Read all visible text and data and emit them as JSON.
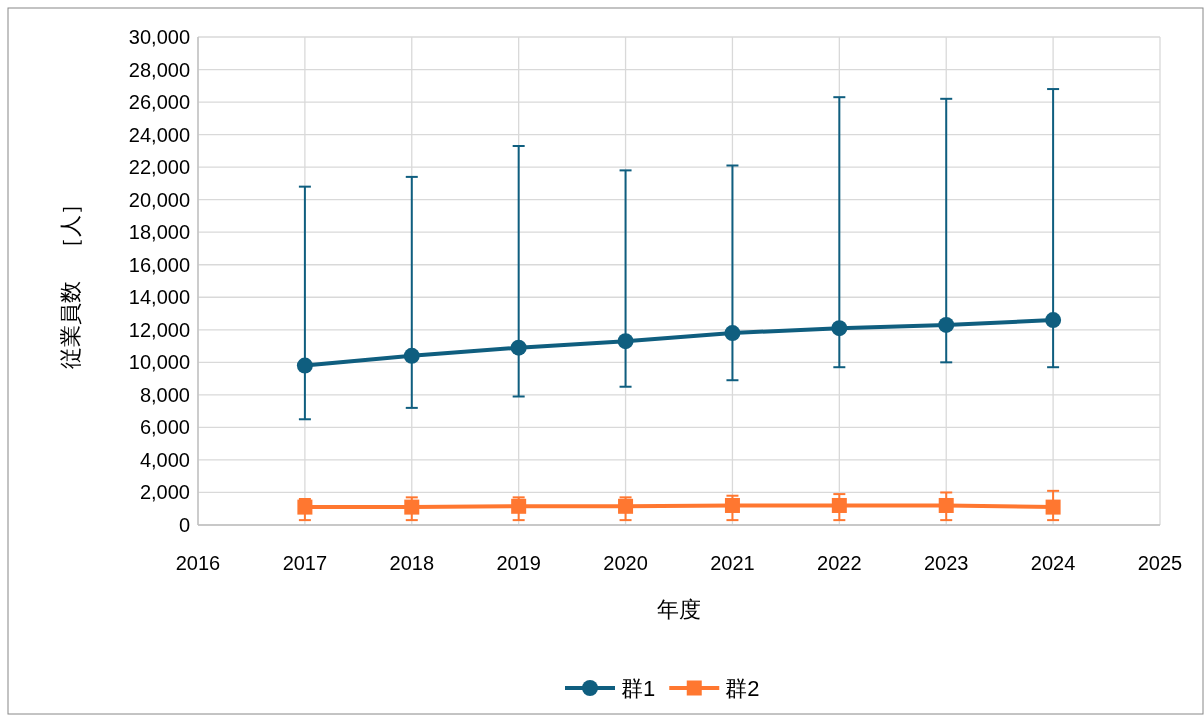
{
  "chart_data": {
    "type": "line",
    "xlabel": "年度",
    "ylabel": "従業員数　［人］",
    "x": [
      2017,
      2018,
      2019,
      2020,
      2021,
      2022,
      2023,
      2024
    ],
    "series": [
      {
        "name": "群1",
        "color": "#0f5e7f",
        "marker": "circle",
        "values": [
          9800,
          10400,
          10900,
          11300,
          11800,
          12100,
          12300,
          12600
        ],
        "errors": [
          [
            6500,
            20800
          ],
          [
            7200,
            21400
          ],
          [
            7900,
            23300
          ],
          [
            8500,
            21800
          ],
          [
            8900,
            22100
          ],
          [
            9700,
            26300
          ],
          [
            10000,
            26200
          ],
          [
            9700,
            26800
          ]
        ]
      },
      {
        "name": "群2",
        "color": "#ff7730",
        "marker": "square",
        "values": [
          1100,
          1100,
          1150,
          1150,
          1200,
          1200,
          1200,
          1100
        ],
        "errors": [
          [
            300,
            1600
          ],
          [
            300,
            1700
          ],
          [
            300,
            1700
          ],
          [
            300,
            1700
          ],
          [
            300,
            1800
          ],
          [
            300,
            1900
          ],
          [
            300,
            2000
          ],
          [
            300,
            2100
          ]
        ]
      }
    ],
    "xlim": [
      2016,
      2025
    ],
    "xticks": [
      2016,
      2017,
      2018,
      2019,
      2020,
      2021,
      2022,
      2023,
      2024,
      2025
    ],
    "ylim": [
      0,
      30000
    ],
    "yticks": [
      {
        "value": 0,
        "label": "0"
      },
      {
        "value": 2000,
        "label": "2,000"
      },
      {
        "value": 4000,
        "label": "4,000"
      },
      {
        "value": 6000,
        "label": "6,000"
      },
      {
        "value": 8000,
        "label": "8,000"
      },
      {
        "value": 10000,
        "label": "10,000"
      },
      {
        "value": 12000,
        "label": "12,000"
      },
      {
        "value": 14000,
        "label": "14,000"
      },
      {
        "value": 16000,
        "label": "16,000"
      },
      {
        "value": 18000,
        "label": "18,000"
      },
      {
        "value": 20000,
        "label": "20,000"
      },
      {
        "value": 22000,
        "label": "22,000"
      },
      {
        "value": 24000,
        "label": "24,000"
      },
      {
        "value": 26000,
        "label": "26,000"
      },
      {
        "value": 28000,
        "label": "28,000"
      },
      {
        "value": 30000,
        "label": "30,000"
      }
    ],
    "grid": true,
    "legend": "bottom",
    "line_style": "solid"
  }
}
